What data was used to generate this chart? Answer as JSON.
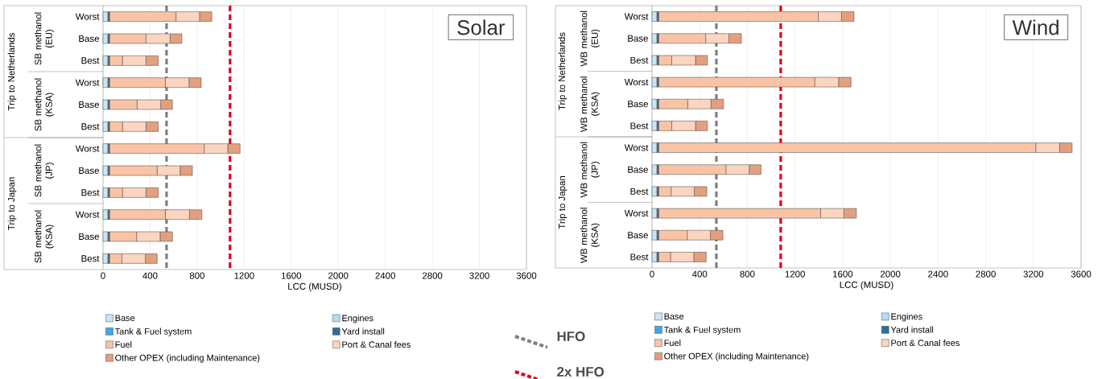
{
  "chart_data": [
    {
      "type": "bar",
      "orientation": "horizontal",
      "stacked": true,
      "title": "Solar",
      "xlabel": "LCC (MUSD)",
      "categories": [
        "Worst",
        "Base",
        "Best",
        "Worst",
        "Base",
        "Best",
        "Worst",
        "Base",
        "Best",
        "Worst",
        "Base",
        "Best"
      ],
      "annotations": [
        "Trip to Netherlands",
        "Trip to Japan",
        "SB methanol (EU)",
        "SB methanol (KSA)",
        "SB methanol (JP)",
        "SB methanol (KSA)"
      ],
      "series": [
        {
          "name": "Base",
          "color": "#c9e6f7",
          "values": [
            40,
            40,
            40,
            40,
            40,
            40,
            40,
            40,
            40,
            40,
            40,
            40
          ]
        },
        {
          "name": "Engines",
          "color": "#b4dcf2",
          "values": [
            5,
            5,
            5,
            5,
            5,
            5,
            5,
            5,
            5,
            5,
            5,
            5
          ]
        },
        {
          "name": "Tank & Fuel system",
          "color": "#3fa9e0",
          "values": [
            5,
            5,
            5,
            5,
            5,
            5,
            5,
            5,
            5,
            5,
            5,
            5
          ]
        },
        {
          "name": "Yard install",
          "color": "#2f6f96",
          "values": [
            5,
            5,
            5,
            5,
            5,
            5,
            5,
            5,
            5,
            5,
            5,
            5
          ]
        },
        {
          "name": "Fuel",
          "color": "#f9c4a6",
          "values": [
            565,
            310,
            110,
            475,
            235,
            110,
            805,
            405,
            110,
            475,
            230,
            105
          ]
        },
        {
          "name": "Port & Canal fees",
          "color": "#fbd5c0",
          "values": [
            200,
            205,
            200,
            200,
            200,
            200,
            200,
            195,
            200,
            205,
            200,
            200
          ]
        },
        {
          "name": "Other OPEX (including Maintenance)",
          "color": "#e2a07e",
          "values": [
            105,
            100,
            105,
            105,
            100,
            105,
            105,
            105,
            105,
            105,
            105,
            100
          ]
        }
      ],
      "xlim": [
        0,
        3600
      ],
      "xticks": [
        0,
        400,
        800,
        1200,
        1600,
        2000,
        2400,
        2800,
        3200,
        3600
      ],
      "ref_lines": [
        {
          "axis": "x",
          "value": 540,
          "label": "HFO",
          "color": "#7f7f7f",
          "line_style": "dashed"
        },
        {
          "axis": "x",
          "value": 1080,
          "label": "2x HFO",
          "color": "#e0001b",
          "line_style": "dashed"
        }
      ],
      "grid": "x",
      "legend": "bottom"
    },
    {
      "type": "bar",
      "orientation": "horizontal",
      "stacked": true,
      "title": "Wind",
      "xlabel": "LCC (MUSD)",
      "categories": [
        "Worst",
        "Base",
        "Best",
        "Worst",
        "Base",
        "Best",
        "Worst",
        "Base",
        "Best",
        "Worst",
        "Base",
        "Best"
      ],
      "annotations": [
        "Trip to Netherlands",
        "Trip to Japan",
        "WB methanol (EU)",
        "WB methanol (KSA)",
        "WB methanol (JP)",
        "WB methanol (KSA)"
      ],
      "series": [
        {
          "name": "Base",
          "color": "#c9e6f7",
          "values": [
            40,
            40,
            40,
            40,
            40,
            40,
            40,
            40,
            40,
            40,
            40,
            40
          ]
        },
        {
          "name": "Engines",
          "color": "#b4dcf2",
          "values": [
            5,
            5,
            5,
            5,
            5,
            5,
            5,
            5,
            5,
            5,
            5,
            5
          ]
        },
        {
          "name": "Tank & Fuel system",
          "color": "#3fa9e0",
          "values": [
            5,
            5,
            5,
            5,
            5,
            5,
            5,
            5,
            5,
            5,
            5,
            5
          ]
        },
        {
          "name": "Yard install",
          "color": "#2f6f96",
          "values": [
            5,
            5,
            5,
            5,
            5,
            5,
            5,
            5,
            5,
            5,
            5,
            5
          ]
        },
        {
          "name": "Fuel",
          "color": "#f9c4a6",
          "values": [
            1340,
            395,
            110,
            1310,
            245,
            110,
            3165,
            565,
            105,
            1360,
            240,
            100
          ]
        },
        {
          "name": "Port & Canal fees",
          "color": "#fbd5c0",
          "values": [
            195,
            195,
            200,
            200,
            195,
            200,
            200,
            195,
            195,
            195,
            195,
            195
          ]
        },
        {
          "name": "Other OPEX (including Maintenance)",
          "color": "#e2a07e",
          "values": [
            105,
            105,
            100,
            105,
            105,
            100,
            105,
            100,
            105,
            105,
            105,
            105
          ]
        }
      ],
      "xlim": [
        0,
        3600
      ],
      "xticks": [
        0,
        400,
        800,
        1200,
        1600,
        2000,
        2400,
        2800,
        3200,
        3600
      ],
      "ref_lines": [
        {
          "axis": "x",
          "value": 540,
          "color": "#7f7f7f",
          "line_style": "dashed"
        },
        {
          "axis": "x",
          "value": 1080,
          "color": "#e0001b",
          "line_style": "dashed"
        }
      ],
      "grid": "x",
      "legend": "bottom"
    }
  ]
}
